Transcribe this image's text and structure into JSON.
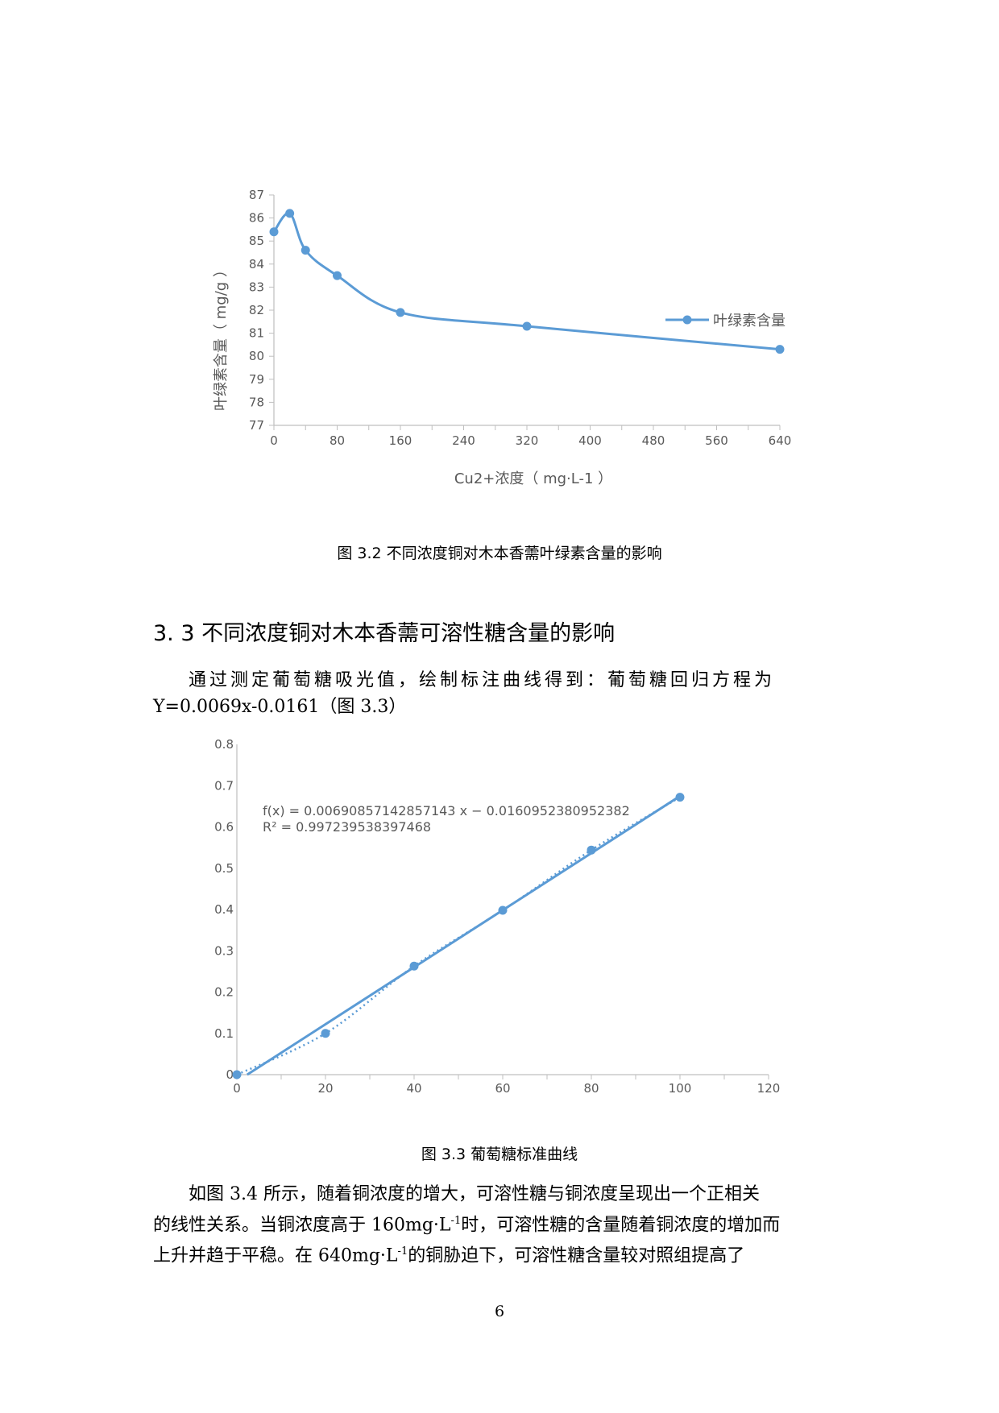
{
  "figure1": {
    "caption": "图 3.2  不同浓度铜对木本香薷叶绿素含量的影响",
    "chart_data": {
      "type": "line",
      "smooth": true,
      "xlabel": "Cu2+浓度（ mg·L-1 ）",
      "ylabel": "叶绿素含量（ mg/g ）",
      "xlim": [
        0,
        640
      ],
      "ylim": [
        77,
        87
      ],
      "x_ticks": [
        "0",
        "80",
        "160",
        "240",
        "320",
        "400",
        "480",
        "560",
        "640"
      ],
      "y_ticks": [
        "77",
        "78",
        "79",
        "80",
        "81",
        "82",
        "83",
        "84",
        "85",
        "86",
        "87"
      ],
      "grid": false,
      "legend_position": "right",
      "series": [
        {
          "name": "叶绿素含量",
          "color": "#5b9bd5",
          "x": [
            0,
            20,
            40,
            80,
            160,
            320,
            640
          ],
          "y": [
            85.4,
            86.2,
            84.6,
            83.5,
            81.9,
            81.3,
            80.3
          ]
        }
      ]
    }
  },
  "section": {
    "heading": "3. 3  不同浓度铜对木本香薷可溶性糖含量的影响",
    "para1_line1": "通过测定葡萄糖吸光值，绘制标注曲线得到：葡萄糖回归方程为",
    "para1_line2": "Y=0.0069x-0.0161（图 3.3）"
  },
  "figure2": {
    "caption": "图 3.3  葡萄糖标准曲线",
    "chart_data": {
      "type": "scatter",
      "xlim": [
        0,
        120
      ],
      "ylim": [
        0,
        0.8
      ],
      "x_ticks": [
        "0",
        "20",
        "40",
        "60",
        "80",
        "100",
        "120"
      ],
      "y_ticks": [
        "0",
        "0.1",
        "0.2",
        "0.3",
        "0.4",
        "0.5",
        "0.6",
        "0.7",
        "0.8"
      ],
      "grid": false,
      "points": {
        "x": [
          0,
          20,
          40,
          60,
          80,
          100
        ],
        "y": [
          0,
          0.1,
          0.263,
          0.398,
          0.544,
          0.672
        ],
        "color": "#5b9bd5"
      },
      "trendline": {
        "slope": 0.00690857142857143,
        "intercept": -0.0160952380952382
      },
      "annotation_line1": "f(x) = 0.00690857142857143 x − 0.0160952380952382",
      "annotation_line2": "R² = 0.997239538397468"
    }
  },
  "para2": {
    "line1": "如图 3.4 所示，随着铜浓度的增大，可溶性糖与铜浓度呈现出一个正相关",
    "line2a": "的线性关系。当铜浓度高于 160mg·L",
    "line2sup": "-1",
    "line2b": "时，可溶性糖的含量随着铜浓度的增加而",
    "line3a": "上升并趋于平稳。在 640mg·L",
    "line3sup": "-1",
    "line3b": "的铜胁迫下，可溶性糖含量较对照组提高了"
  },
  "page_number": "6"
}
